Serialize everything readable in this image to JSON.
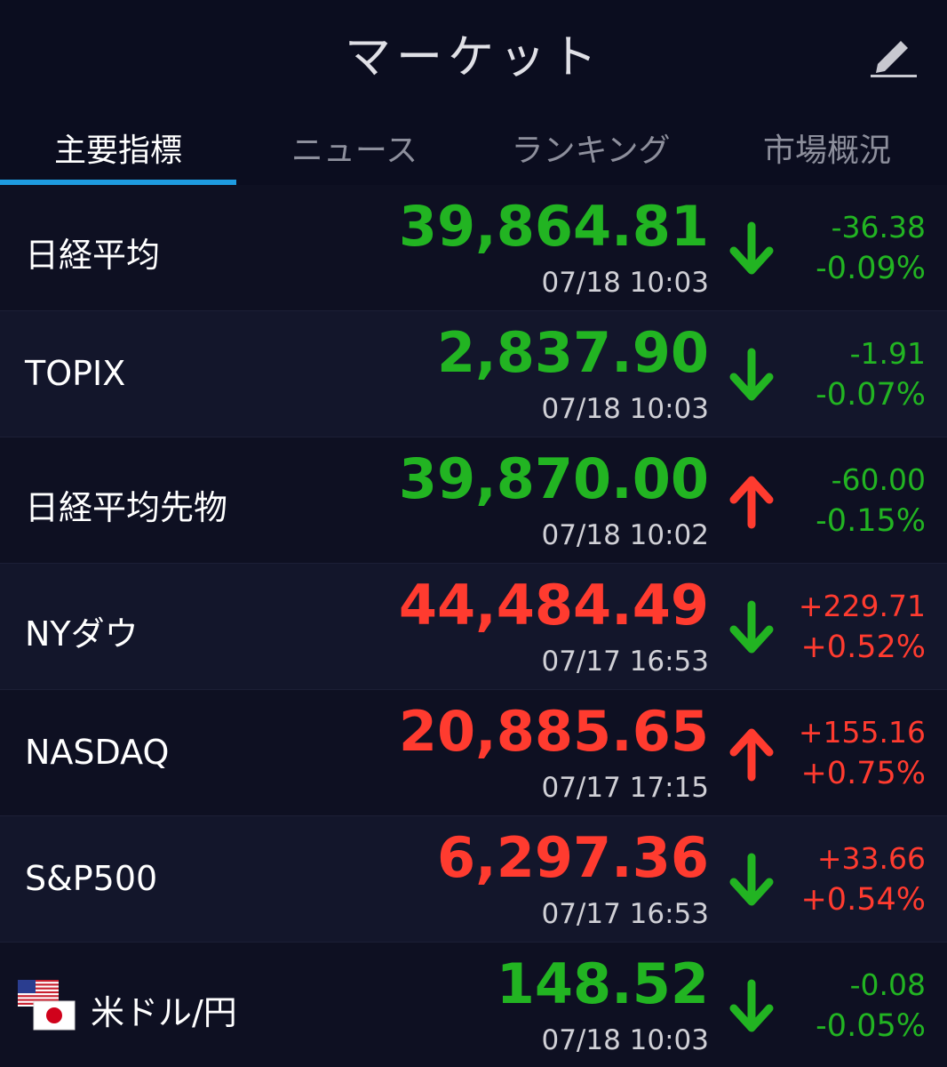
{
  "header": {
    "title": "マーケット"
  },
  "tabs": [
    "主要指標",
    "ニュース",
    "ランキング",
    "市場概況"
  ],
  "active_tab": 0,
  "rows": [
    {
      "name": "日経平均",
      "price": "39,864.81",
      "time": "07/18 10:03",
      "change": "-36.38",
      "percent": "-0.09%",
      "color": "#22b422",
      "arrow": "down",
      "arrow_color": "#22b422"
    },
    {
      "name": "TOPIX",
      "price": "2,837.90",
      "time": "07/18 10:03",
      "change": "-1.91",
      "percent": "-0.07%",
      "color": "#22b422",
      "arrow": "down",
      "arrow_color": "#22b422"
    },
    {
      "name": "日経平均先物",
      "price": "39,870.00",
      "time": "07/18 10:02",
      "change": "-60.00",
      "percent": "-0.15%",
      "color": "#22b422",
      "arrow": "up",
      "arrow_color": "#ff3b2f"
    },
    {
      "name": "NYダウ",
      "price": "44,484.49",
      "time": "07/17 16:53",
      "change": "+229.71",
      "percent": "+0.52%",
      "color": "#ff3b2f",
      "arrow": "down",
      "arrow_color": "#22b422"
    },
    {
      "name": "NASDAQ",
      "price": "20,885.65",
      "time": "07/17 17:15",
      "change": "+155.16",
      "percent": "+0.75%",
      "color": "#ff3b2f",
      "arrow": "up",
      "arrow_color": "#ff3b2f"
    },
    {
      "name": "S&P500",
      "price": "6,297.36",
      "time": "07/17 16:53",
      "change": "+33.66",
      "percent": "+0.54%",
      "color": "#ff3b2f",
      "arrow": "down",
      "arrow_color": "#22b422"
    },
    {
      "name": "米ドル/円",
      "price": "148.52",
      "time": "07/18 10:03",
      "change": "-0.08",
      "percent": "-0.05%",
      "color": "#22b422",
      "arrow": "down",
      "arrow_color": "#22b422"
    }
  ]
}
